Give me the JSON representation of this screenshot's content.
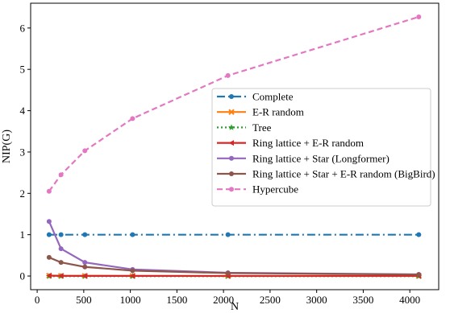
{
  "chart_data": {
    "type": "line",
    "title": "",
    "xlabel": "N",
    "ylabel": "NIP(G)",
    "xlim": [
      -70,
      4310
    ],
    "ylim": [
      -0.33,
      6.6
    ],
    "xticks": [
      0,
      500,
      1000,
      1500,
      2000,
      2500,
      3000,
      3500,
      4000
    ],
    "yticks": [
      0,
      1,
      2,
      3,
      4,
      5,
      6
    ],
    "grid": false,
    "legend_position": "center-right",
    "x": [
      128,
      256,
      512,
      1024,
      2048,
      4096
    ],
    "series": [
      {
        "name": "Complete",
        "color": "#1f77b4",
        "dash": "10,4,2,4",
        "marker": "circle",
        "values": [
          1.0,
          1.0,
          1.0,
          1.0,
          1.0,
          1.0
        ]
      },
      {
        "name": "E-R random",
        "color": "#ff7f0e",
        "dash": "",
        "marker": "x",
        "values": [
          0.01,
          0.005,
          0.003,
          0.002,
          0.001,
          0.0005
        ]
      },
      {
        "name": "Tree",
        "color": "#2ca02c",
        "dash": "2,3",
        "marker": "star",
        "values": [
          -0.005,
          -0.005,
          -0.005,
          -0.005,
          -0.005,
          -0.005
        ]
      },
      {
        "name": "Ring lattice + E-R random",
        "color": "#d62728",
        "dash": "",
        "marker": "left-triangle",
        "values": [
          0.01,
          0.005,
          0.004,
          0.003,
          0.002,
          0.002
        ]
      },
      {
        "name": "Ring lattice + Star (Longformer)",
        "color": "#9467bd",
        "dash": "",
        "marker": "circle",
        "values": [
          1.32,
          0.66,
          0.33,
          0.16,
          0.08,
          0.04
        ]
      },
      {
        "name": "Ring lattice + Star + E-R random (BigBird)",
        "color": "#8c564b",
        "dash": "",
        "marker": "circle",
        "values": [
          0.45,
          0.33,
          0.22,
          0.13,
          0.07,
          0.035
        ]
      },
      {
        "name": "Hypercube",
        "color": "#e377c2",
        "dash": "7,4",
        "marker": "circle",
        "values": [
          2.05,
          2.45,
          3.03,
          3.81,
          4.85,
          6.27
        ]
      }
    ]
  }
}
